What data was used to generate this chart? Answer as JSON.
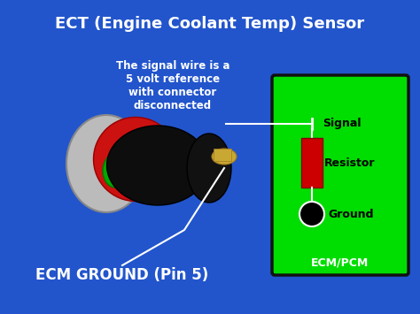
{
  "bg_color": "#2255CC",
  "title": "ECT (Engine Coolant Temp) Sensor",
  "title_color": "white",
  "title_fontsize": 13,
  "annotation_text": "The signal wire is a\n5 volt reference\nwith connector\ndisconnected",
  "annotation_color": "white",
  "annotation_fontsize": 8.5,
  "ecm_ground_text": "ECM GROUND (Pin 5)",
  "ecm_ground_color": "white",
  "ecm_ground_fontsize": 12,
  "ecm_pcm_label": "ECM/PCM",
  "ecm_pcm_color": "white",
  "ecm_pcm_fontsize": 9,
  "green_box_color": "#00DD00",
  "signal_label": "Signal",
  "resistor_label": "Resistor",
  "ground_label": "Ground",
  "resistor_color": "#CC0000",
  "ground_dot_color": "black"
}
